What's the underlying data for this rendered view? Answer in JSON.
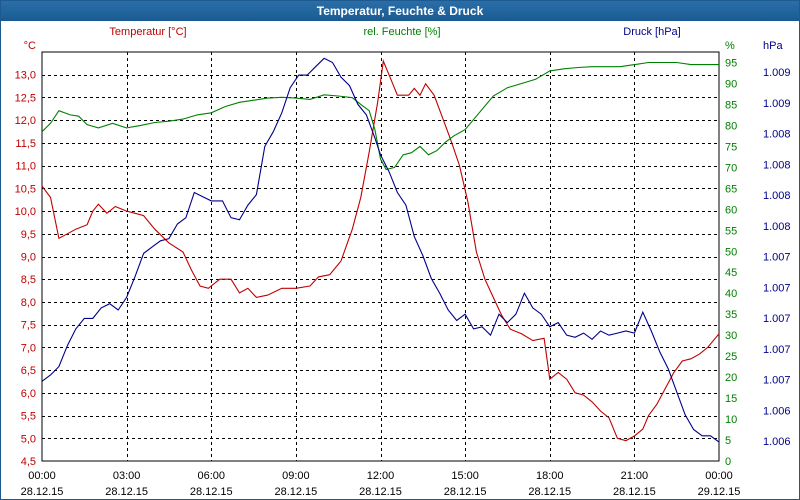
{
  "chart_data": {
    "type": "line",
    "title": "Temperatur, Feuchte & Druck",
    "series_labels": {
      "temperature": "Temperatur [°C]",
      "humidity": "rel. Feuchte [%]",
      "pressure": "Druck [hPa]"
    },
    "axes": {
      "left": {
        "unit": "°C",
        "range": [
          4.5,
          13.5
        ],
        "ticks": [
          "4,5",
          "5,0",
          "5,5",
          "6,0",
          "6,5",
          "7,0",
          "7,5",
          "8,0",
          "8,5",
          "9,0",
          "9,5",
          "10,0",
          "10,5",
          "11,0",
          "11,5",
          "12,0",
          "12,5",
          "13,0"
        ],
        "color": "#c00000"
      },
      "right1": {
        "unit": "%",
        "range": [
          0,
          97.5
        ],
        "ticks": [
          "0",
          "5",
          "10",
          "15",
          "20",
          "25",
          "30",
          "35",
          "40",
          "45",
          "50",
          "55",
          "60",
          "65",
          "70",
          "75",
          "80",
          "85",
          "90",
          "95"
        ],
        "color": "#008000"
      },
      "right2": {
        "unit": "hPa",
        "ticks": [
          "1.006",
          "1.006",
          "1.007",
          "1.007",
          "1.007",
          "1.007",
          "1.007",
          "1.008",
          "1.008",
          "1.008",
          "1.008",
          "1.009",
          "1.009"
        ],
        "color": "#00008b"
      }
    },
    "x": {
      "hours": [
        0,
        3,
        6,
        9,
        12,
        15,
        18,
        21,
        24
      ],
      "time_labels": [
        "00:00",
        "03:00",
        "06:00",
        "09:00",
        "12:00",
        "15:00",
        "18:00",
        "21:00",
        "00:00"
      ],
      "date_labels": [
        "28.12.15",
        "28.12.15",
        "28.12.15",
        "28.12.15",
        "28.12.15",
        "28.12.15",
        "28.12.15",
        "28.12.15",
        "29.12.15"
      ]
    },
    "series": [
      {
        "name": "Temperatur [°C]",
        "key": "temperature",
        "color": "#c00000",
        "axis": "left",
        "points": [
          [
            0,
            10.55
          ],
          [
            0.3,
            10.3
          ],
          [
            0.6,
            9.4
          ],
          [
            0.9,
            9.5
          ],
          [
            1.2,
            9.6
          ],
          [
            1.6,
            9.7
          ],
          [
            1.8,
            10.0
          ],
          [
            2.0,
            10.15
          ],
          [
            2.3,
            9.95
          ],
          [
            2.6,
            10.1
          ],
          [
            3.0,
            10.0
          ],
          [
            3.3,
            9.95
          ],
          [
            3.6,
            9.9
          ],
          [
            4.0,
            9.6
          ],
          [
            4.5,
            9.3
          ],
          [
            5.0,
            9.1
          ],
          [
            5.3,
            8.7
          ],
          [
            5.6,
            8.35
          ],
          [
            5.9,
            8.3
          ],
          [
            6.3,
            8.5
          ],
          [
            6.7,
            8.5
          ],
          [
            7.0,
            8.2
          ],
          [
            7.3,
            8.3
          ],
          [
            7.6,
            8.1
          ],
          [
            8.0,
            8.15
          ],
          [
            8.5,
            8.3
          ],
          [
            9.0,
            8.3
          ],
          [
            9.5,
            8.35
          ],
          [
            9.8,
            8.55
          ],
          [
            10.2,
            8.6
          ],
          [
            10.6,
            8.9
          ],
          [
            11.0,
            9.6
          ],
          [
            11.3,
            10.3
          ],
          [
            11.6,
            11.3
          ],
          [
            11.9,
            12.4
          ],
          [
            12.1,
            13.3
          ],
          [
            12.3,
            13.0
          ],
          [
            12.6,
            12.55
          ],
          [
            13.0,
            12.55
          ],
          [
            13.2,
            12.7
          ],
          [
            13.4,
            12.55
          ],
          [
            13.6,
            12.8
          ],
          [
            13.9,
            12.55
          ],
          [
            14.2,
            12.05
          ],
          [
            14.5,
            11.55
          ],
          [
            14.8,
            11.0
          ],
          [
            15.1,
            10.2
          ],
          [
            15.4,
            9.1
          ],
          [
            15.7,
            8.5
          ],
          [
            16.0,
            8.1
          ],
          [
            16.3,
            7.7
          ],
          [
            16.6,
            7.4
          ],
          [
            17.0,
            7.3
          ],
          [
            17.4,
            7.15
          ],
          [
            17.8,
            7.2
          ],
          [
            18.0,
            6.3
          ],
          [
            18.3,
            6.45
          ],
          [
            18.6,
            6.3
          ],
          [
            18.9,
            6.0
          ],
          [
            19.2,
            5.95
          ],
          [
            19.5,
            5.8
          ],
          [
            19.8,
            5.6
          ],
          [
            20.1,
            5.45
          ],
          [
            20.4,
            5.0
          ],
          [
            20.7,
            4.95
          ],
          [
            21.0,
            5.05
          ],
          [
            21.3,
            5.2
          ],
          [
            21.5,
            5.5
          ],
          [
            21.8,
            5.75
          ],
          [
            22.1,
            6.1
          ],
          [
            22.4,
            6.45
          ],
          [
            22.7,
            6.7
          ],
          [
            23.0,
            6.75
          ],
          [
            23.3,
            6.85
          ],
          [
            23.6,
            7.0
          ],
          [
            24.0,
            7.3
          ]
        ]
      },
      {
        "name": "rel. Feuchte [%]",
        "key": "humidity",
        "color": "#008000",
        "axis": "right1",
        "points": [
          [
            0,
            78.5
          ],
          [
            0.3,
            80.5
          ],
          [
            0.6,
            83.5
          ],
          [
            1.0,
            82.5
          ],
          [
            1.3,
            82.2
          ],
          [
            1.6,
            80.2
          ],
          [
            2.0,
            79.4
          ],
          [
            2.5,
            80.5
          ],
          [
            3.0,
            79.4
          ],
          [
            3.5,
            80.0
          ],
          [
            4.0,
            80.7
          ],
          [
            4.5,
            81.0
          ],
          [
            5.0,
            81.5
          ],
          [
            5.5,
            82.5
          ],
          [
            6.0,
            83.0
          ],
          [
            6.5,
            84.5
          ],
          [
            7.0,
            85.5
          ],
          [
            7.5,
            86.0
          ],
          [
            8.0,
            86.5
          ],
          [
            8.5,
            86.7
          ],
          [
            9.0,
            86.5
          ],
          [
            9.5,
            86.2
          ],
          [
            10.0,
            87.3
          ],
          [
            10.5,
            87.0
          ],
          [
            11.0,
            86.6
          ],
          [
            11.3,
            85.0
          ],
          [
            11.6,
            83.5
          ],
          [
            11.8,
            79.0
          ],
          [
            12.0,
            72.0
          ],
          [
            12.2,
            69.5
          ],
          [
            12.5,
            70.0
          ],
          [
            12.8,
            73.0
          ],
          [
            13.1,
            73.5
          ],
          [
            13.4,
            75.0
          ],
          [
            13.7,
            73.0
          ],
          [
            14.0,
            74.0
          ],
          [
            14.3,
            76.0
          ],
          [
            14.6,
            77.5
          ],
          [
            15.0,
            79.0
          ],
          [
            15.5,
            83.0
          ],
          [
            16.0,
            87.0
          ],
          [
            16.5,
            89.0
          ],
          [
            17.0,
            90.0
          ],
          [
            17.5,
            91.0
          ],
          [
            18.0,
            93.0
          ],
          [
            18.5,
            93.5
          ],
          [
            19.0,
            93.8
          ],
          [
            19.5,
            94.0
          ],
          [
            20.0,
            94.0
          ],
          [
            20.5,
            94.0
          ],
          [
            21.0,
            94.5
          ],
          [
            21.5,
            95.0
          ],
          [
            22.0,
            95.0
          ],
          [
            22.5,
            95.0
          ],
          [
            23.0,
            94.5
          ],
          [
            23.5,
            94.5
          ],
          [
            24.0,
            94.5
          ]
        ]
      },
      {
        "name": "Druck [hPa]",
        "key": "pressure",
        "color": "#00008b",
        "axis": "right1",
        "points": [
          [
            0,
            19.0
          ],
          [
            0.3,
            20.5
          ],
          [
            0.6,
            22.5
          ],
          [
            0.9,
            27.5
          ],
          [
            1.2,
            31.5
          ],
          [
            1.5,
            34.0
          ],
          [
            1.8,
            34.0
          ],
          [
            2.1,
            36.5
          ],
          [
            2.4,
            37.5
          ],
          [
            2.7,
            36.0
          ],
          [
            3.0,
            39.0
          ],
          [
            3.3,
            44.0
          ],
          [
            3.6,
            49.5
          ],
          [
            3.9,
            51.0
          ],
          [
            4.2,
            52.5
          ],
          [
            4.5,
            53.0
          ],
          [
            4.8,
            56.5
          ],
          [
            5.1,
            58.0
          ],
          [
            5.4,
            64.0
          ],
          [
            5.7,
            63.0
          ],
          [
            6.0,
            62.0
          ],
          [
            6.4,
            62.0
          ],
          [
            6.7,
            58.0
          ],
          [
            7.0,
            57.5
          ],
          [
            7.3,
            61.0
          ],
          [
            7.6,
            63.5
          ],
          [
            7.9,
            75.0
          ],
          [
            8.2,
            78.5
          ],
          [
            8.5,
            83.0
          ],
          [
            8.8,
            89.0
          ],
          [
            9.1,
            92.0
          ],
          [
            9.4,
            92.0
          ],
          [
            9.7,
            94.0
          ],
          [
            10.0,
            96.0
          ],
          [
            10.3,
            95.0
          ],
          [
            10.6,
            91.5
          ],
          [
            10.9,
            89.5
          ],
          [
            11.2,
            85.0
          ],
          [
            11.5,
            82.5
          ],
          [
            11.8,
            77.0
          ],
          [
            12.0,
            73.0
          ],
          [
            12.3,
            69.0
          ],
          [
            12.6,
            64.0
          ],
          [
            12.9,
            61.0
          ],
          [
            13.2,
            53.5
          ],
          [
            13.5,
            49.0
          ],
          [
            13.8,
            43.5
          ],
          [
            14.1,
            40.0
          ],
          [
            14.4,
            36.0
          ],
          [
            14.7,
            33.5
          ],
          [
            15.0,
            35.0
          ],
          [
            15.3,
            31.5
          ],
          [
            15.6,
            32.0
          ],
          [
            15.9,
            30.0
          ],
          [
            16.2,
            35.0
          ],
          [
            16.5,
            33.0
          ],
          [
            16.8,
            35.0
          ],
          [
            17.1,
            40.0
          ],
          [
            17.4,
            36.5
          ],
          [
            17.7,
            35.0
          ],
          [
            18.0,
            32.0
          ],
          [
            18.3,
            33.0
          ],
          [
            18.6,
            30.0
          ],
          [
            18.9,
            29.5
          ],
          [
            19.2,
            30.5
          ],
          [
            19.5,
            29.0
          ],
          [
            19.8,
            31.0
          ],
          [
            20.1,
            30.0
          ],
          [
            20.4,
            30.5
          ],
          [
            20.7,
            31.0
          ],
          [
            21.0,
            30.5
          ],
          [
            21.3,
            35.5
          ],
          [
            21.6,
            31.0
          ],
          [
            21.9,
            26.0
          ],
          [
            22.2,
            22.0
          ],
          [
            22.5,
            16.5
          ],
          [
            22.8,
            11.0
          ],
          [
            23.1,
            7.5
          ],
          [
            23.4,
            6.0
          ],
          [
            23.7,
            6.0
          ],
          [
            24.0,
            4.5
          ]
        ]
      }
    ]
  }
}
